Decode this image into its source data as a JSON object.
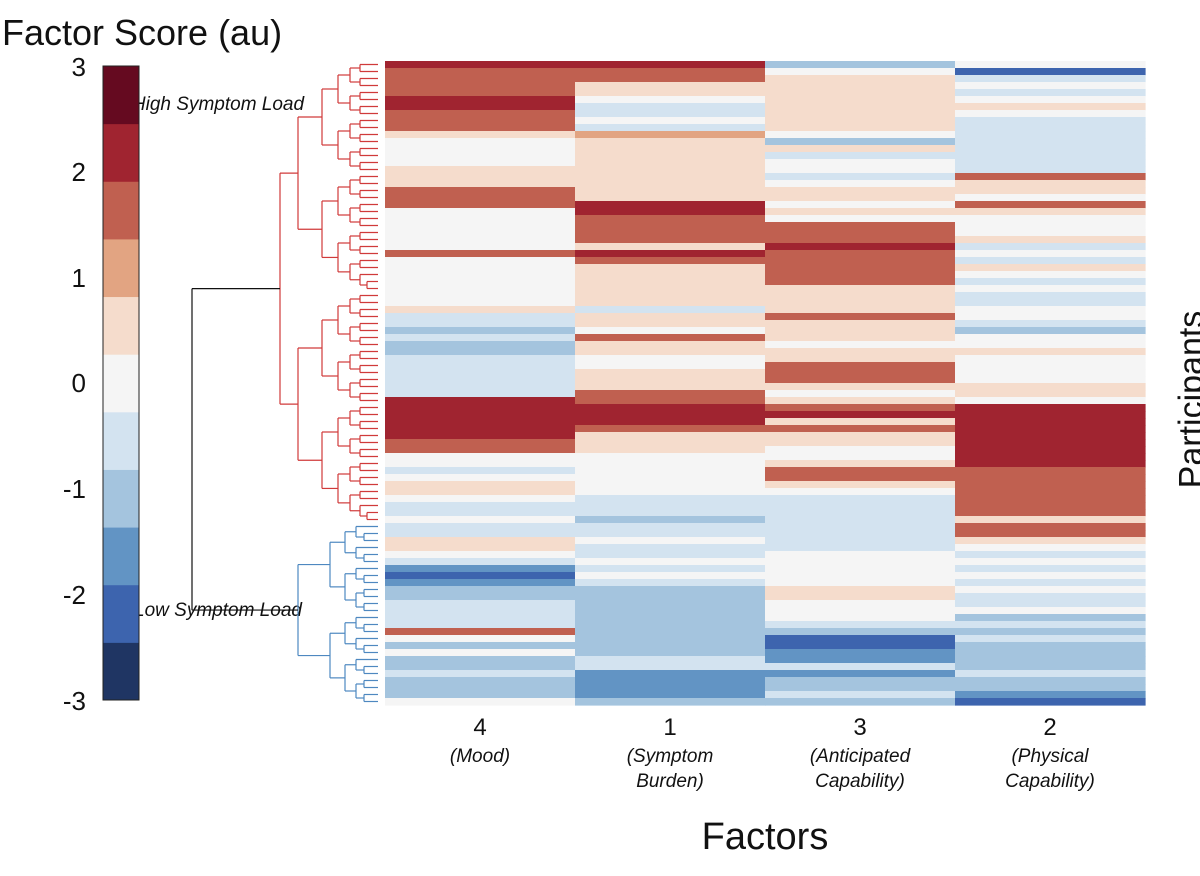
{
  "colorbar": {
    "title": "Factor Score (au)",
    "ticks": [
      "3",
      "2",
      "1",
      "0",
      "-1",
      "-2",
      "-3"
    ],
    "range": [
      -3,
      3
    ],
    "colors": [
      "#1f3563",
      "#3d64ae",
      "#6294c4",
      "#a4c4de",
      "#d3e3f0",
      "#f5f5f5",
      "#f5dccc",
      "#e2a482",
      "#c06050",
      "#a02430",
      "#650a20"
    ]
  },
  "clusters": {
    "high_label": "High Symptom Load",
    "low_label": "Low Symptom Load",
    "high_color": "#d03a3a",
    "low_color": "#4e88c0"
  },
  "factors": [
    {
      "number": "4",
      "name": "(Mood)"
    },
    {
      "number": "1",
      "name": "(Symptom Burden)"
    },
    {
      "number": "3",
      "name": "(Anticipated Capability)"
    },
    {
      "number": "2",
      "name": "(Physical Capability)"
    }
  ],
  "axes": {
    "xlabel": "Factors",
    "ylabel": "Participants"
  },
  "chart_data": {
    "type": "heatmap",
    "columns": [
      "4",
      "1",
      "3",
      "2"
    ],
    "row_count": 92,
    "values": [
      [
        2.1,
        2.1,
        -1.2,
        0.0
      ],
      [
        1.4,
        1.4,
        0.0,
        -2.4
      ],
      [
        1.4,
        1.4,
        0.4,
        -0.6
      ],
      [
        1.8,
        0.6,
        0.4,
        0.0
      ],
      [
        1.8,
        0.6,
        0.4,
        -0.4
      ],
      [
        2.1,
        0.0,
        0.4,
        0.0
      ],
      [
        2.1,
        -0.6,
        0.4,
        0.4
      ],
      [
        1.4,
        -0.4,
        0.4,
        0.0
      ],
      [
        1.4,
        0.0,
        0.4,
        -0.4
      ],
      [
        1.4,
        -0.6,
        0.4,
        -0.4
      ],
      [
        0.4,
        1.0,
        0.0,
        -0.4
      ],
      [
        0.0,
        0.4,
        -1.0,
        -0.4
      ],
      [
        0.0,
        0.4,
        0.4,
        -0.4
      ],
      [
        0.0,
        0.4,
        -0.4,
        -0.4
      ],
      [
        0.0,
        0.4,
        0.0,
        -0.4
      ],
      [
        0.4,
        0.4,
        0.0,
        -0.4
      ],
      [
        0.4,
        0.4,
        -0.4,
        1.4
      ],
      [
        0.4,
        0.4,
        0.0,
        0.4
      ],
      [
        1.4,
        0.4,
        0.4,
        0.4
      ],
      [
        1.4,
        0.4,
        0.4,
        0.0
      ],
      [
        1.4,
        2.0,
        0.0,
        1.4
      ],
      [
        0.0,
        2.0,
        0.4,
        0.4
      ],
      [
        0.0,
        1.4,
        0.0,
        0.0
      ],
      [
        0.0,
        1.4,
        1.4,
        0.0
      ],
      [
        0.0,
        1.4,
        1.4,
        0.0
      ],
      [
        0.0,
        1.4,
        1.4,
        0.4
      ],
      [
        0.0,
        0.4,
        2.0,
        -0.4
      ],
      [
        1.4,
        2.0,
        1.4,
        0.0
      ],
      [
        0.0,
        1.4,
        1.4,
        -0.4
      ],
      [
        0.0,
        0.4,
        1.4,
        0.4
      ],
      [
        0.0,
        0.4,
        1.4,
        0.0
      ],
      [
        0.0,
        0.4,
        1.4,
        -0.4
      ],
      [
        0.0,
        0.4,
        0.4,
        0.0
      ],
      [
        0.0,
        0.4,
        0.4,
        -0.6
      ],
      [
        0.0,
        0.4,
        0.4,
        -0.6
      ],
      [
        0.4,
        -0.4,
        0.4,
        0.0
      ],
      [
        -0.6,
        0.4,
        1.4,
        0.0
      ],
      [
        -0.6,
        0.4,
        0.4,
        -0.6
      ],
      [
        -1.0,
        0.0,
        0.4,
        -1.0
      ],
      [
        -0.6,
        1.4,
        0.4,
        0.0
      ],
      [
        -1.0,
        0.4,
        0.0,
        0.0
      ],
      [
        -1.0,
        0.4,
        0.4,
        0.4
      ],
      [
        -0.6,
        0.0,
        0.4,
        0.0
      ],
      [
        -0.6,
        0.0,
        1.4,
        0.0
      ],
      [
        -0.6,
        0.4,
        1.4,
        0.0
      ],
      [
        -0.4,
        0.4,
        1.4,
        0.0
      ],
      [
        -0.4,
        0.4,
        0.4,
        0.4
      ],
      [
        -0.4,
        1.4,
        0.0,
        0.4
      ],
      [
        2.0,
        1.4,
        0.4,
        0.0
      ],
      [
        2.3,
        2.3,
        1.4,
        2.0
      ],
      [
        2.3,
        2.3,
        2.0,
        2.3
      ],
      [
        2.0,
        2.0,
        0.4,
        2.0
      ],
      [
        2.0,
        1.4,
        1.4,
        2.3
      ],
      [
        2.0,
        0.4,
        0.4,
        2.0
      ],
      [
        1.4,
        0.4,
        0.4,
        2.3
      ],
      [
        1.4,
        0.4,
        0.0,
        2.0
      ],
      [
        0.0,
        0.0,
        0.0,
        2.3
      ],
      [
        0.0,
        0.0,
        0.4,
        2.0
      ],
      [
        -0.4,
        0.0,
        1.4,
        1.4
      ],
      [
        0.0,
        0.0,
        1.4,
        1.4
      ],
      [
        0.4,
        0.0,
        0.4,
        1.4
      ],
      [
        0.4,
        0.0,
        0.0,
        1.4
      ],
      [
        0.0,
        -0.4,
        -0.4,
        1.4
      ],
      [
        -0.4,
        -0.6,
        -0.4,
        1.4
      ],
      [
        -0.4,
        -0.6,
        -0.4,
        1.4
      ],
      [
        0.0,
        -1.0,
        -0.4,
        0.4
      ],
      [
        -0.4,
        -0.4,
        -0.4,
        1.4
      ],
      [
        -0.6,
        -0.4,
        -0.4,
        1.4
      ],
      [
        0.4,
        0.0,
        -0.4,
        0.4
      ],
      [
        0.4,
        -0.4,
        -0.4,
        0.0
      ],
      [
        0.0,
        -0.4,
        0.0,
        -0.4
      ],
      [
        -0.4,
        0.0,
        0.0,
        0.0
      ],
      [
        -1.4,
        -0.4,
        0.0,
        -0.4
      ],
      [
        -2.0,
        0.0,
        0.0,
        0.0
      ],
      [
        -1.4,
        -0.4,
        0.0,
        -0.4
      ],
      [
        -1.0,
        -1.0,
        0.4,
        0.0
      ],
      [
        -1.0,
        -1.0,
        0.4,
        -0.4
      ],
      [
        -0.4,
        -1.0,
        0.0,
        -0.4
      ],
      [
        -0.4,
        -1.0,
        0.0,
        0.0
      ],
      [
        -0.4,
        -1.0,
        0.0,
        -1.0
      ],
      [
        -0.4,
        -1.0,
        -0.4,
        -0.4
      ],
      [
        1.4,
        -1.0,
        -1.0,
        -1.0
      ],
      [
        0.0,
        -1.0,
        -2.4,
        -0.4
      ],
      [
        -1.0,
        -1.0,
        -2.4,
        -1.0
      ],
      [
        0.0,
        -1.0,
        -1.4,
        -1.0
      ],
      [
        -1.0,
        -0.4,
        -1.4,
        -1.0
      ],
      [
        -1.0,
        -0.4,
        -0.4,
        -1.0
      ],
      [
        -0.4,
        -1.4,
        -1.4,
        -0.4
      ],
      [
        -1.0,
        -1.4,
        -1.0,
        -1.0
      ],
      [
        -1.0,
        -1.4,
        -1.0,
        -1.0
      ],
      [
        -1.0,
        -1.4,
        -0.4,
        -1.4
      ],
      [
        0.0,
        -1.0,
        -1.0,
        -2.0
      ]
    ]
  }
}
